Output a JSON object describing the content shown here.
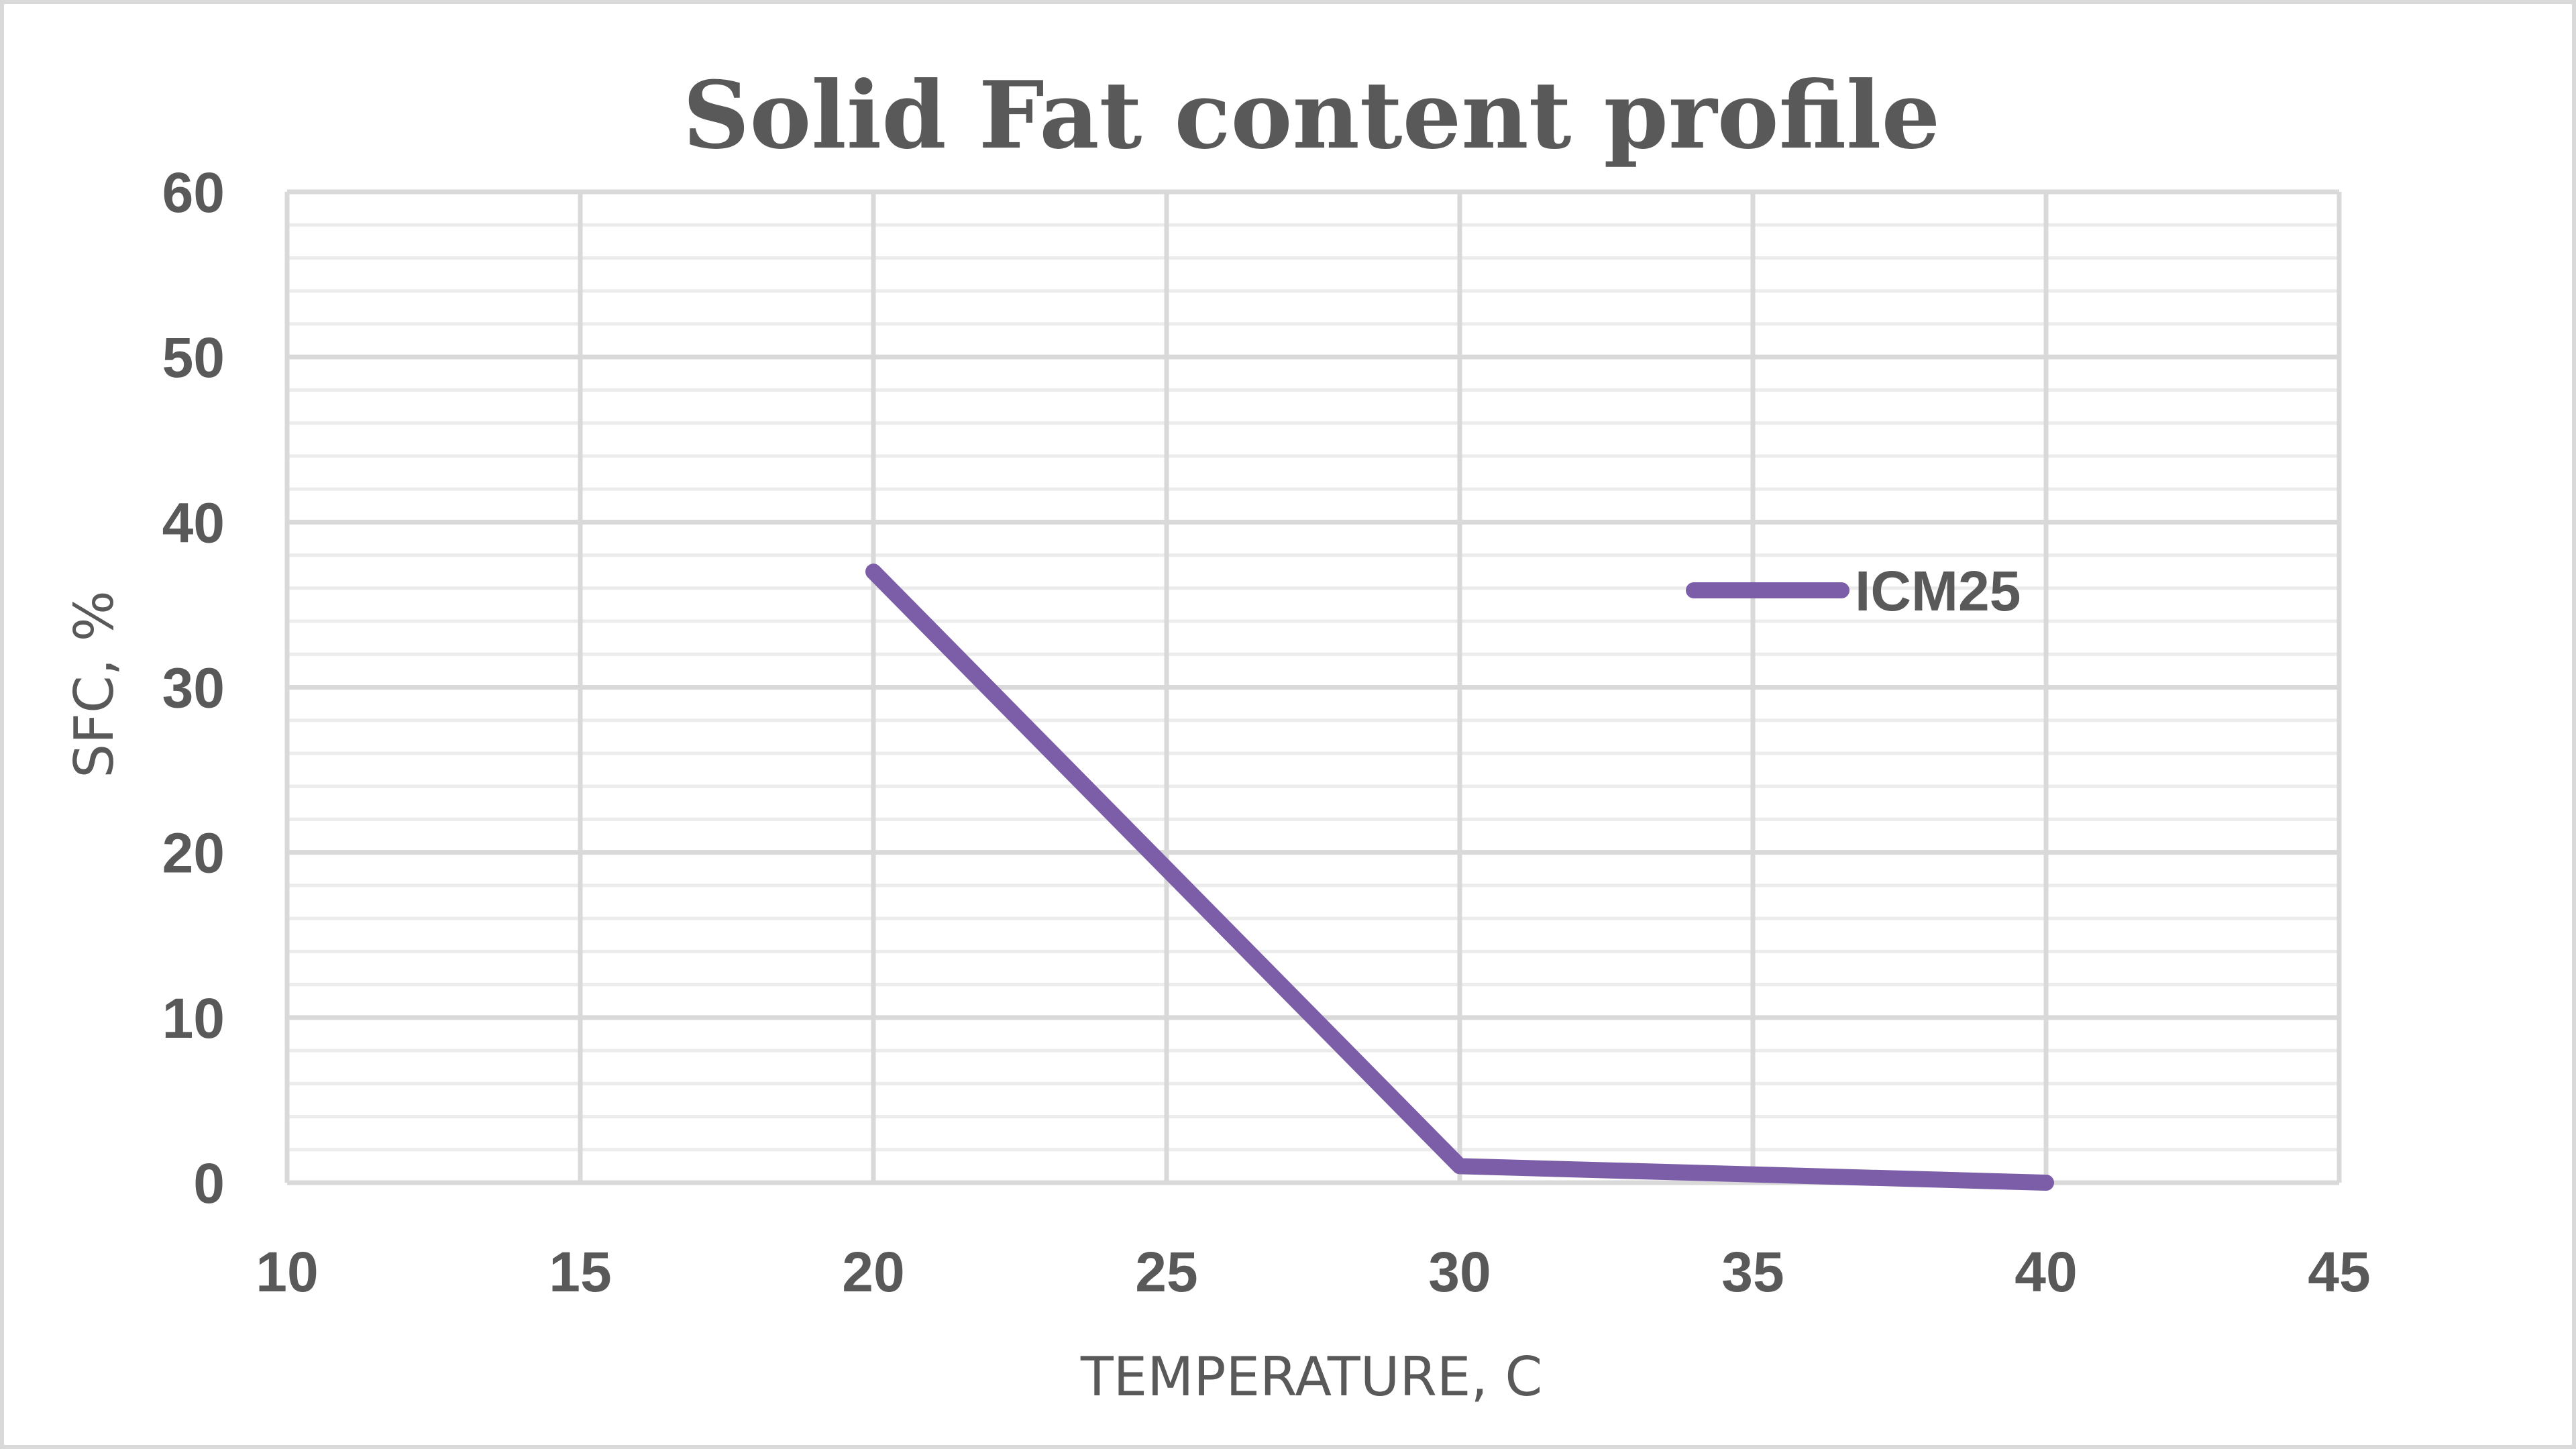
{
  "chart_data": {
    "type": "line",
    "title": "Solid Fat content profile",
    "xlabel": "TEMPERATURE, C",
    "ylabel": "SFC, %",
    "xlim": [
      10,
      45
    ],
    "ylim": [
      0,
      60
    ],
    "x_ticks": [
      10,
      15,
      20,
      25,
      30,
      35,
      40,
      45
    ],
    "y_ticks": [
      0,
      10,
      20,
      30,
      40,
      50,
      60
    ],
    "x_tick_labels": [
      "10",
      "15",
      "20",
      "25",
      "30",
      "35",
      "40",
      "45"
    ],
    "y_tick_labels": [
      "0",
      "10",
      "20",
      "30",
      "40",
      "50",
      "60"
    ],
    "grid": true,
    "minor_grid_y_step": 2,
    "legend_position": "right",
    "series": [
      {
        "name": "ICM25",
        "color": "#7b5ea7",
        "points": [
          {
            "x": 20,
            "y": 37
          },
          {
            "x": 30,
            "y": 1
          },
          {
            "x": 40,
            "y": 0
          }
        ]
      }
    ]
  },
  "colors": {
    "major_grid": "#d9d9d9",
    "minor_grid": "#ececec",
    "text": "#595959",
    "frame": "#d9d9d9"
  }
}
